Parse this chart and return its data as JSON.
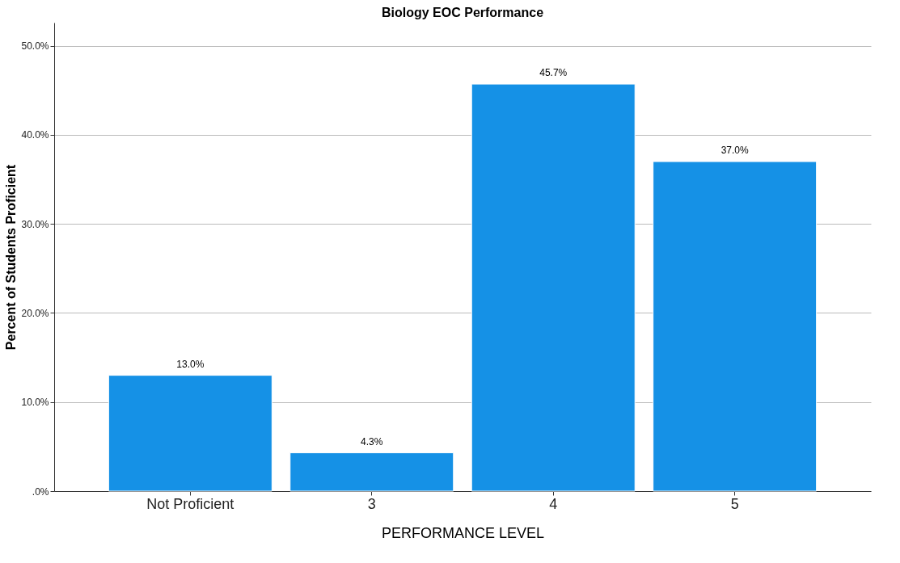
{
  "chart_data": {
    "type": "bar",
    "title": "Biology EOC Performance",
    "xlabel": "PERFORMANCE LEVEL",
    "ylabel": "Percent of Students Proficient",
    "categories": [
      "Not Proficient",
      "3",
      "4",
      "5"
    ],
    "values": [
      13.0,
      4.3,
      45.7,
      37.0
    ],
    "value_labels": [
      "13.0%",
      "4.3%",
      "45.7%",
      "37.0%"
    ],
    "color": "#1591e6",
    "ylim": [
      0,
      52.6
    ],
    "yticks": [
      {
        "value": 0,
        "label": ".0%"
      },
      {
        "value": 10,
        "label": "10.0%"
      },
      {
        "value": 20,
        "label": "20.0%"
      },
      {
        "value": 30,
        "label": "30.0%"
      },
      {
        "value": 40,
        "label": "40.0%"
      },
      {
        "value": 50,
        "label": "50.0%"
      }
    ],
    "grid": "y"
  }
}
